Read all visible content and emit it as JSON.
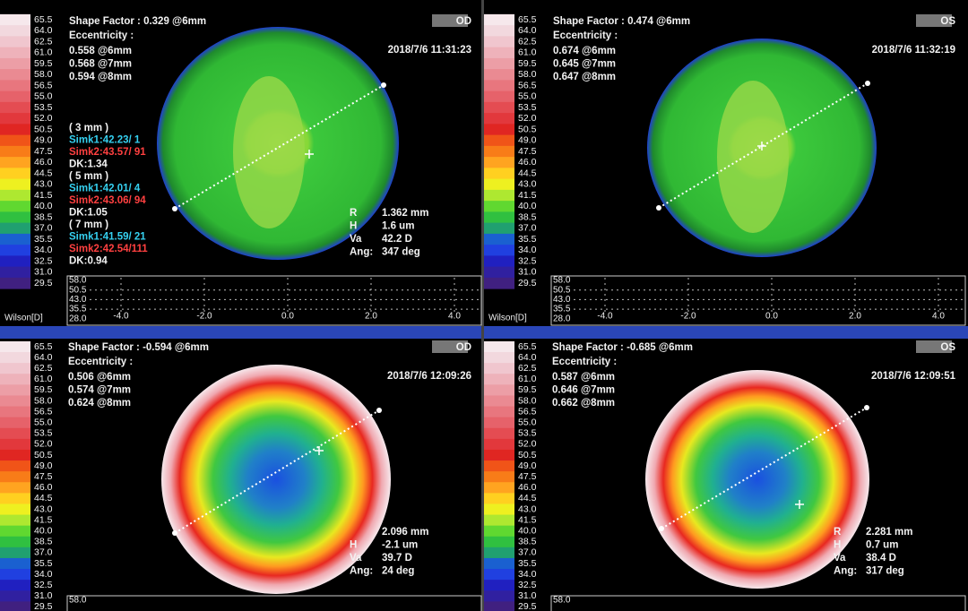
{
  "scale": [
    "65.5",
    "64.0",
    "62.5",
    "61.0",
    "59.5",
    "58.0",
    "56.5",
    "55.0",
    "53.5",
    "52.0",
    "50.5",
    "49.0",
    "47.5",
    "46.0",
    "44.5",
    "43.0",
    "41.5",
    "40.0",
    "38.5",
    "37.0",
    "35.5",
    "34.0",
    "32.5",
    "31.0",
    "29.5"
  ],
  "panels": [
    {
      "eye": "OD",
      "shape_factor": "Shape Factor : 0.329 @6mm",
      "eccentricity_title": "Eccentricity :",
      "eccentricity": [
        "0.558 @6mm",
        "0.568 @7mm",
        "0.594 @8mm"
      ],
      "date": "2018/7/6 11:31:23",
      "simk": [
        {
          "zone": "( 3 mm )",
          "simk1": "Simk1:42.23/  1",
          "simk2": "Simk2:43.57/ 91",
          "dk": "DK:1.34"
        },
        {
          "zone": "( 5 mm )",
          "simk1": "Simk1:42.01/  4",
          "simk2": "Simk2:43.06/ 94",
          "dk": "DK:1.05"
        },
        {
          "zone": "( 7 mm )",
          "simk1": "Simk1:41.59/ 21",
          "simk2": "Simk2:42.54/111",
          "dk": "DK:0.94"
        }
      ],
      "measurements": [
        {
          "label": "R",
          "value": "1.362 mm"
        },
        {
          "label": "H",
          "value": "1.6 um"
        },
        {
          "label": "Va",
          "value": "42.2 D"
        },
        {
          "label": "Ang:",
          "value": "347 deg"
        }
      ],
      "profile": {
        "axis_label": "Wilson[D]",
        "yticks": [
          "58.0",
          "50.5",
          "43.0",
          "35.5",
          "28.0"
        ],
        "xticks": [
          "-4.0",
          "-2.0",
          "0.0",
          "2.0",
          "4.0"
        ]
      }
    },
    {
      "eye": "OS",
      "shape_factor": "Shape Factor : 0.474 @6mm",
      "eccentricity_title": "Eccentricity :",
      "eccentricity": [
        "0.674 @6mm",
        "0.645 @7mm",
        "0.647 @8mm"
      ],
      "date": "2018/7/6 11:32:19",
      "profile": {
        "axis_label": "Wilson[D]",
        "yticks": [
          "58.0",
          "50.5",
          "43.0",
          "35.5",
          "28.0"
        ],
        "xticks": [
          "-4.0",
          "-2.0",
          "0.0",
          "2.0",
          "4.0"
        ]
      }
    },
    {
      "eye": "OD",
      "shape_factor": "Shape Factor : -0.594 @6mm",
      "eccentricity_title": "Eccentricity :",
      "eccentricity": [
        "0.506 @6mm",
        "0.574 @7mm",
        "0.624 @8mm"
      ],
      "date": "2018/7/6 12:09:26",
      "measurements": [
        {
          "value": "2.096 mm"
        },
        {
          "label": "H",
          "value": "-2.1 um"
        },
        {
          "label": "Va",
          "value": "39.7 D"
        },
        {
          "label": "Ang:",
          "value": "24 deg"
        }
      ],
      "profile": {
        "yticks": [
          "58.0"
        ]
      }
    },
    {
      "eye": "OS",
      "shape_factor": "Shape Factor : -0.685 @6mm",
      "eccentricity_title": "Eccentricity :",
      "eccentricity": [
        "0.587 @6mm",
        "0.646 @7mm",
        "0.662 @8mm"
      ],
      "date": "2018/7/6 12:09:51",
      "measurements": [
        {
          "label": "R",
          "value": "2.281 mm"
        },
        {
          "label": "H",
          "value": "0.7 um"
        },
        {
          "label": "Va",
          "value": "38.4 D"
        },
        {
          "label": "Ang:",
          "value": "317 deg"
        }
      ],
      "profile": {
        "yticks": [
          "58.0"
        ]
      }
    }
  ]
}
